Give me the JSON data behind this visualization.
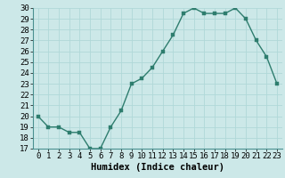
{
  "x": [
    0,
    1,
    2,
    3,
    4,
    5,
    6,
    7,
    8,
    9,
    10,
    11,
    12,
    13,
    14,
    15,
    16,
    17,
    18,
    19,
    20,
    21,
    22,
    23
  ],
  "y": [
    20,
    19,
    19,
    18.5,
    18.5,
    17,
    17,
    19,
    20.5,
    23,
    23.5,
    24.5,
    26,
    27.5,
    29.5,
    30,
    29.5,
    29.5,
    29.5,
    30,
    29,
    27,
    25.5,
    23
  ],
  "line_color": "#2e7d6e",
  "marker_color": "#2e7d6e",
  "bg_color": "#cce8e8",
  "grid_color": "#b0d8d8",
  "xlabel": "Humidex (Indice chaleur)",
  "ylim": [
    17,
    30
  ],
  "xlim": [
    -0.5,
    23.5
  ],
  "yticks": [
    17,
    18,
    19,
    20,
    21,
    22,
    23,
    24,
    25,
    26,
    27,
    28,
    29,
    30
  ],
  "xticks": [
    0,
    1,
    2,
    3,
    4,
    5,
    6,
    7,
    8,
    9,
    10,
    11,
    12,
    13,
    14,
    15,
    16,
    17,
    18,
    19,
    20,
    21,
    22,
    23
  ],
  "tick_fontsize": 6.5,
  "xlabel_fontsize": 7.5,
  "linewidth": 1.0,
  "markersize": 2.5
}
